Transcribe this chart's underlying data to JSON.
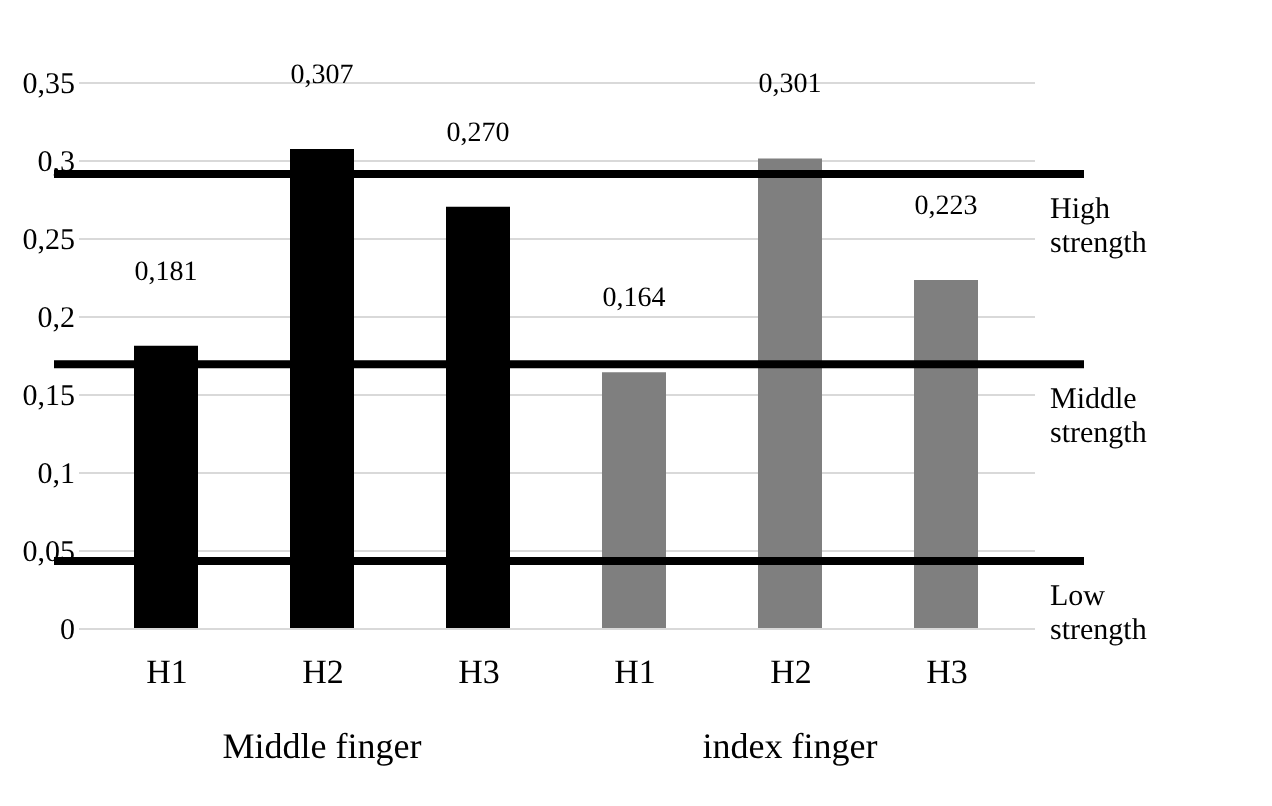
{
  "chart_data": {
    "type": "bar",
    "categories": [
      "H1",
      "H2",
      "H3",
      "H1",
      "H2",
      "H3"
    ],
    "series": [
      {
        "name": "Middle finger",
        "color": "#000000",
        "values": [
          0.181,
          0.307,
          0.27,
          null,
          null,
          null
        ],
        "value_labels": [
          "0,181",
          "0,307",
          "0,270",
          null,
          null,
          null
        ]
      },
      {
        "name": "index finger",
        "color": "#7f7f7f",
        "values": [
          null,
          null,
          null,
          0.164,
          0.301,
          0.223
        ],
        "value_labels": [
          null,
          null,
          null,
          "0,164",
          "0,301",
          "0,223"
        ]
      }
    ],
    "ylim": [
      0,
      0.35
    ],
    "yticks": [
      0,
      {
        "value": 0.05,
        "label": "0,05"
      },
      {
        "value": 0.1,
        "label": "0,1"
      },
      {
        "value": 0.15,
        "label": "0,15"
      },
      {
        "value": 0.2,
        "label": "0,2"
      },
      {
        "value": 0.25,
        "label": "0,25"
      },
      {
        "value": 0.3,
        "label": "0,3"
      },
      {
        "value": 0.35,
        "label": "0,35"
      }
    ],
    "grid": "y",
    "ref_lines": [
      {
        "axis": "y",
        "value": 0.291,
        "label": "High strength",
        "color": "#000000"
      },
      {
        "axis": "y",
        "value": 0.169,
        "label": "Middle strength",
        "color": "#000000"
      },
      {
        "axis": "y",
        "value": 0.043,
        "label": "Low strength",
        "color": "#000000"
      }
    ]
  }
}
